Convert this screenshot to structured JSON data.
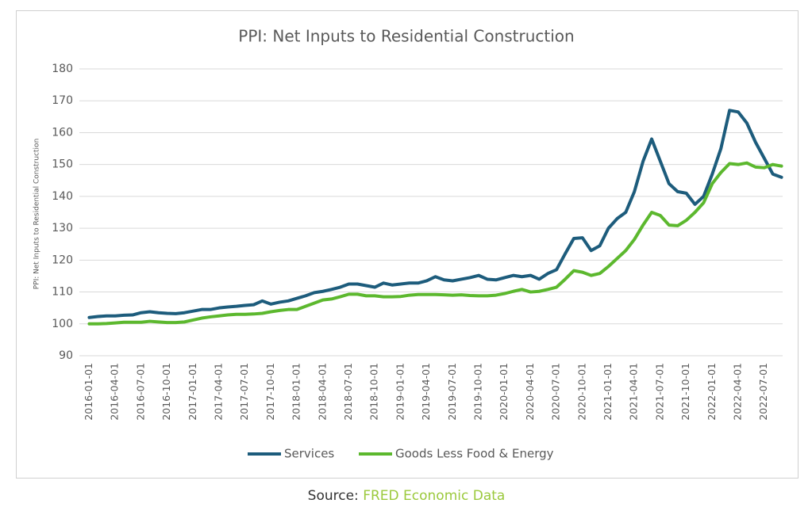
{
  "chart_data": {
    "type": "line",
    "title": "PPI: Net Inputs to Residential Construction",
    "ylabel": "PPI: Net Inputs to Residential Construction",
    "categories": [
      "2016-01-01",
      null,
      null,
      "2016-04-01",
      null,
      null,
      "2016-07-01",
      null,
      null,
      "2016-10-01",
      null,
      null,
      "2017-01-01",
      null,
      null,
      "2017-04-01",
      null,
      null,
      "2017-07-01",
      null,
      null,
      "2017-10-01",
      null,
      null,
      "2018-01-01",
      null,
      null,
      "2018-04-01",
      null,
      null,
      "2018-07-01",
      null,
      null,
      "2018-10-01",
      null,
      null,
      "2019-01-01",
      null,
      null,
      "2019-04-01",
      null,
      null,
      "2019-07-01",
      null,
      null,
      "2019-10-01",
      null,
      null,
      "2020-01-01",
      null,
      null,
      "2020-04-01",
      null,
      null,
      "2020-07-01",
      null,
      null,
      "2020-10-01",
      null,
      null,
      "2021-01-01",
      null,
      null,
      "2021-04-01",
      null,
      null,
      "2021-07-01",
      null,
      null,
      "2021-10-01",
      null,
      null,
      "2022-01-01",
      null,
      null,
      "2022-04-01",
      null,
      null,
      "2022-07-01",
      null,
      null
    ],
    "series": [
      {
        "name": "Services",
        "color": "#1d5c7c",
        "values": [
          102,
          102.3,
          102.5,
          102.5,
          102.7,
          102.8,
          103.5,
          103.8,
          103.5,
          103.3,
          103.2,
          103.5,
          104,
          104.5,
          104.5,
          105,
          105.3,
          105.5,
          105.8,
          106,
          107.2,
          106.2,
          106.8,
          107.2,
          108,
          108.8,
          109.8,
          110.2,
          110.8,
          111.5,
          112.5,
          112.5,
          112,
          111.5,
          112.8,
          112.2,
          112.5,
          112.8,
          112.8,
          113.5,
          114.8,
          113.8,
          113.5,
          114,
          114.5,
          115.2,
          114,
          113.8,
          114.5,
          115.2,
          114.8,
          115.2,
          114,
          115.8,
          117,
          122,
          126.8,
          127,
          123,
          124.5,
          130,
          133,
          135,
          141.5,
          151,
          158,
          151,
          144,
          141.5,
          141,
          137.5,
          140,
          147,
          155,
          167,
          166.5,
          163,
          157,
          152,
          147,
          146
        ]
      },
      {
        "name": "Goods Less Food & Energy",
        "color": "#5cb82e",
        "values": [
          100,
          100,
          100.1,
          100.3,
          100.5,
          100.5,
          100.5,
          100.8,
          100.6,
          100.4,
          100.4,
          100.6,
          101.2,
          101.8,
          102.2,
          102.5,
          102.8,
          103,
          103,
          103.1,
          103.3,
          103.8,
          104.2,
          104.5,
          104.5,
          105.5,
          106.5,
          107.5,
          107.8,
          108.5,
          109.3,
          109.3,
          108.8,
          108.8,
          108.5,
          108.5,
          108.6,
          109,
          109.2,
          109.2,
          109.2,
          109.1,
          109,
          109.1,
          108.9,
          108.8,
          108.8,
          109,
          109.5,
          110.2,
          110.8,
          110,
          110.2,
          110.8,
          111.5,
          114,
          116.7,
          116.2,
          115.2,
          115.8,
          118,
          120.5,
          123,
          126.5,
          131,
          135,
          134,
          131,
          130.8,
          132.5,
          135,
          138,
          144,
          147.5,
          150.3,
          150,
          150.5,
          149.2,
          149,
          150,
          149.5
        ]
      }
    ],
    "ylim": [
      90,
      180
    ],
    "yticks": [
      90,
      100,
      110,
      120,
      130,
      140,
      150,
      160,
      170,
      180
    ],
    "grid": true,
    "legend": "bottom"
  },
  "source": {
    "prefix": "Source:",
    "name": "FRED Economic Data"
  }
}
